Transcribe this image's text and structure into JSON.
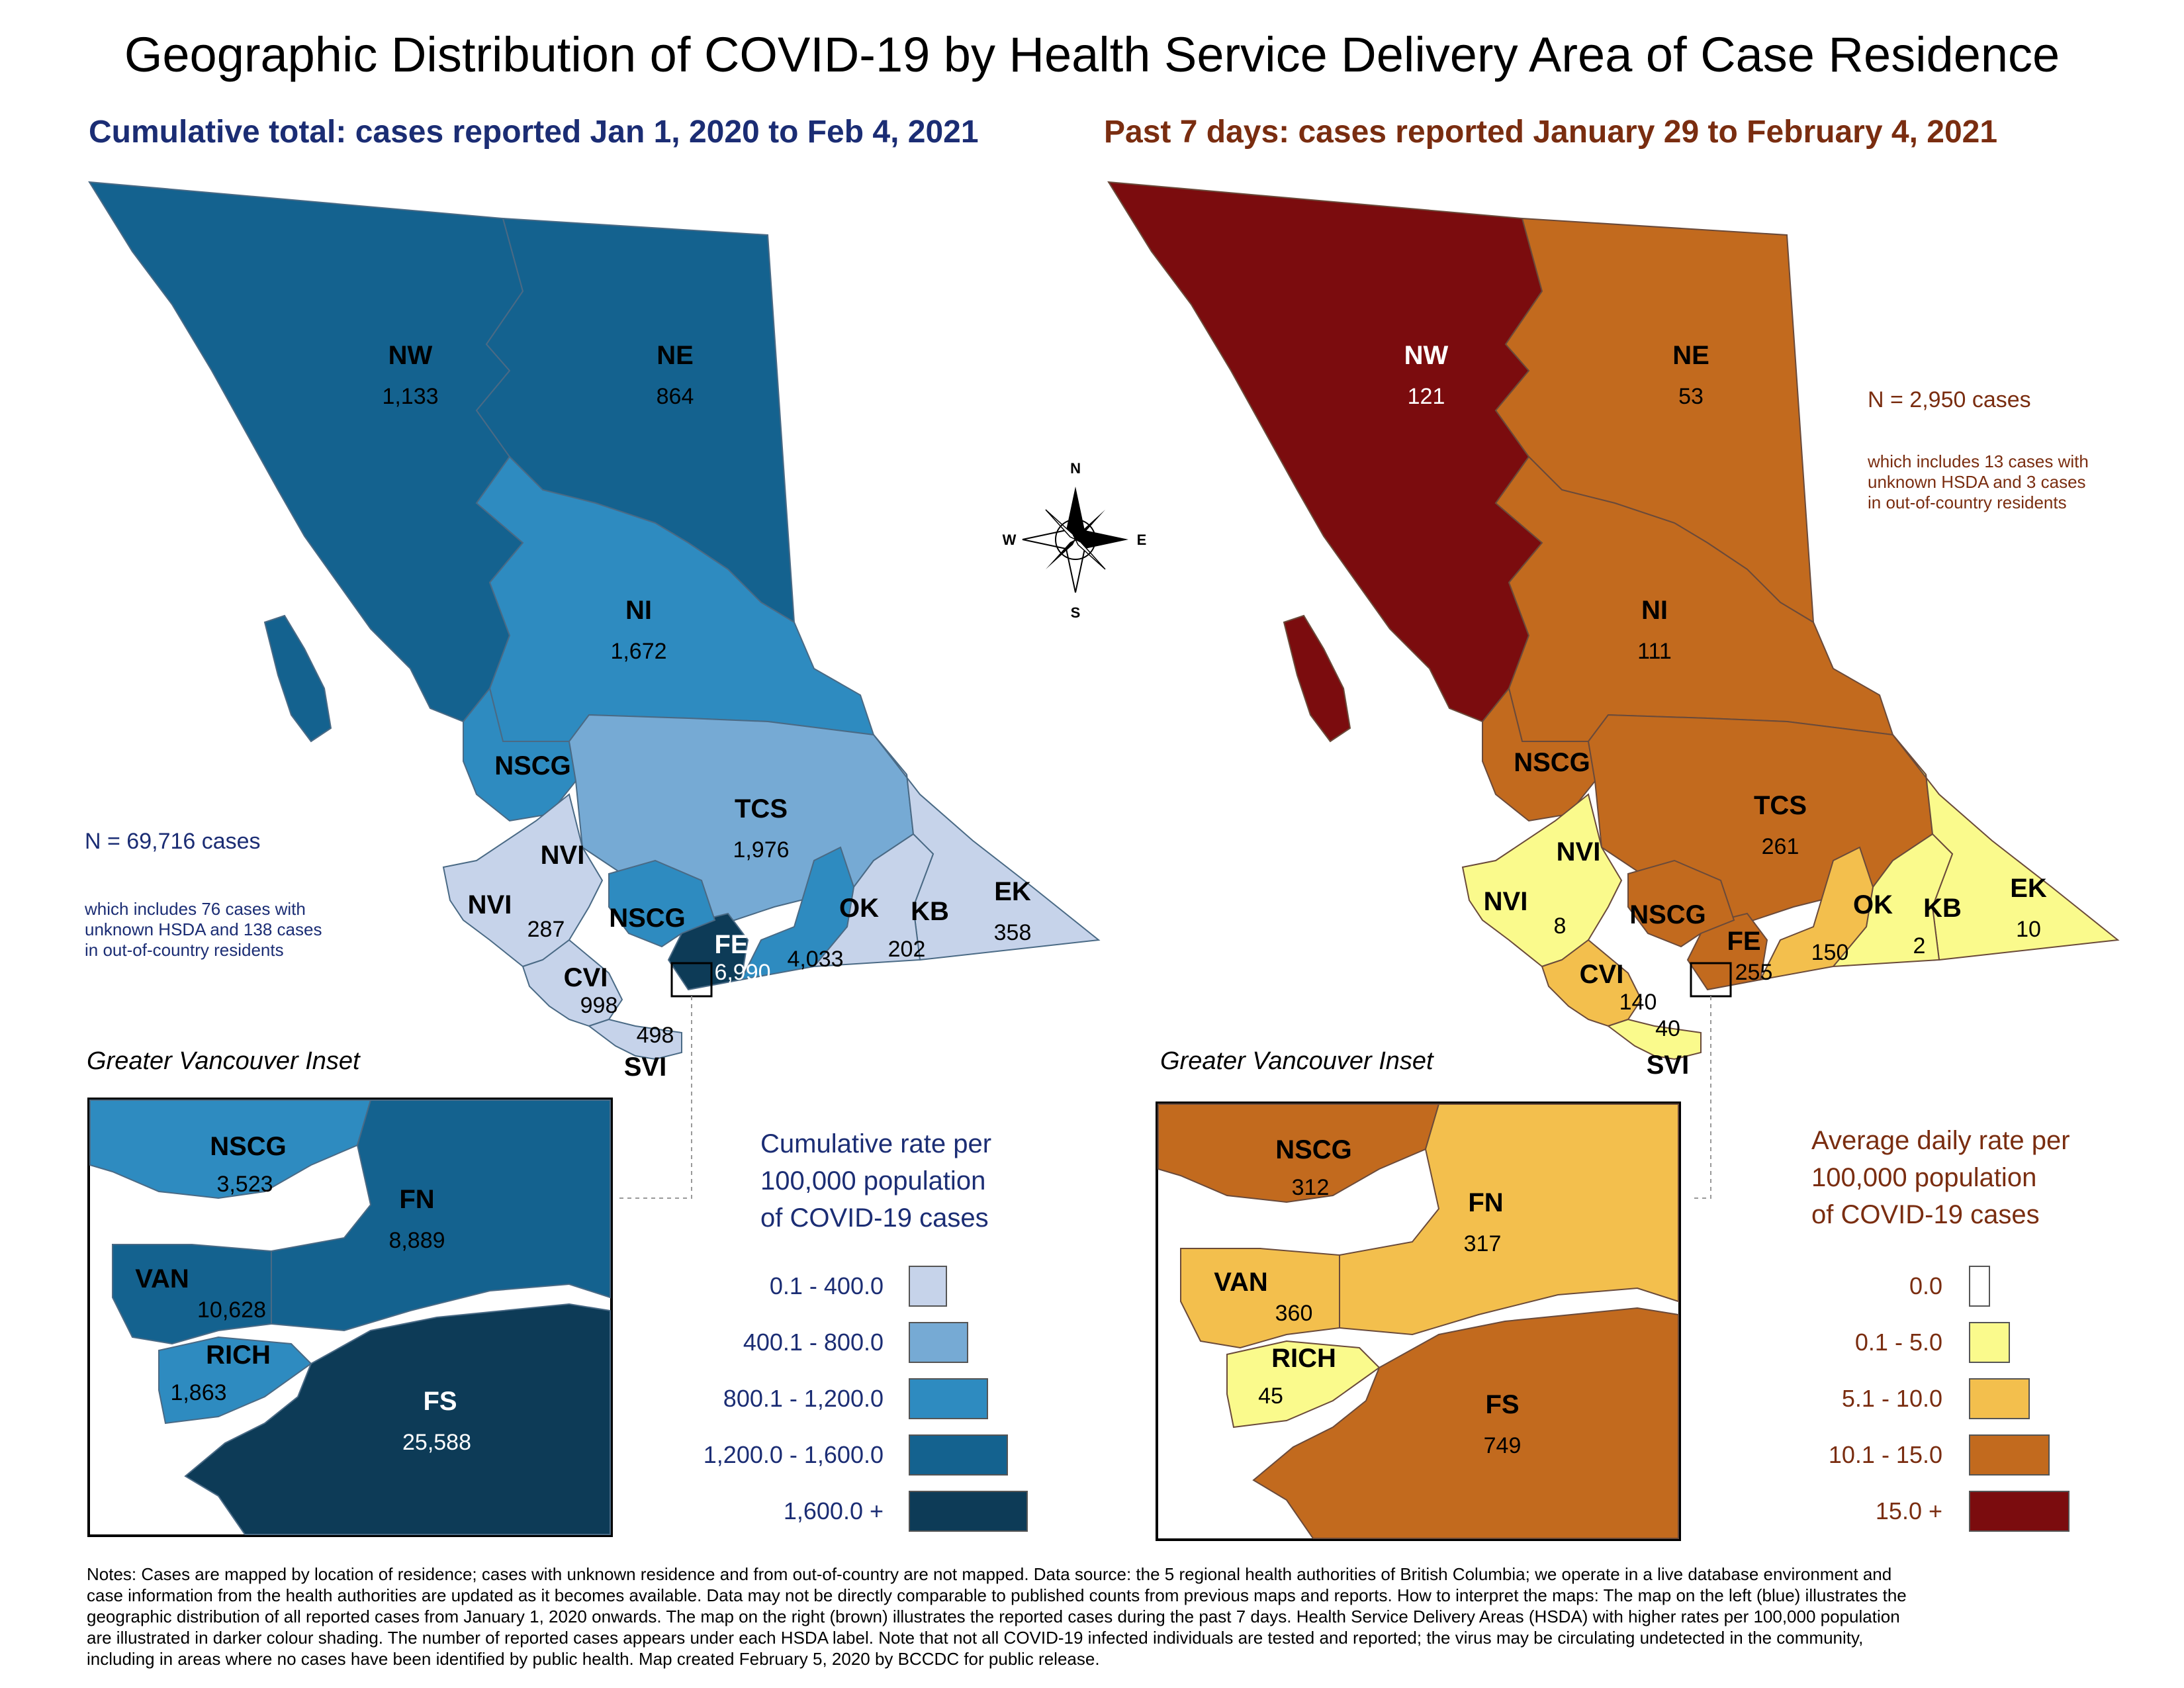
{
  "title": "Geographic Distribution of COVID-19 by Health Service Delivery Area of Case Residence",
  "left_panel": {
    "subtitle": "Cumulative total: cases reported Jan 1, 2020 to Feb 4, 2021",
    "n_cases": "N = 69,716 cases",
    "n_note_line1": "which includes 76 cases with",
    "n_note_line2": "unknown HSDA and 138 cases",
    "n_note_line3": "in out-of-country residents",
    "regions": {
      "NW": {
        "label": "NW",
        "value": "1,133",
        "color": "#14628f"
      },
      "NE": {
        "label": "NE",
        "value": "864",
        "color": "#14628f"
      },
      "NI": {
        "label": "NI",
        "value": "1,672",
        "color": "#2e8bc0"
      },
      "NSCG": {
        "label": "NSCG",
        "value": "",
        "color": "#2e8bc0"
      },
      "TCS": {
        "label": "TCS",
        "value": "1,976",
        "color": "#76aad4"
      },
      "NVI": {
        "label": "NVI",
        "value": "287",
        "color": "#c6d3ea"
      },
      "NSCG2": {
        "label": "NSCG",
        "value": "",
        "color": "#2e8bc0"
      },
      "FE": {
        "label": "FE",
        "value": "6,990",
        "color": "#0d3b57"
      },
      "OK": {
        "label": "OK",
        "value": "4,033",
        "color": "#2e8bc0"
      },
      "KB": {
        "label": "KB",
        "value": "202",
        "color": "#c6d3ea"
      },
      "EK": {
        "label": "EK",
        "value": "358",
        "color": "#c6d3ea"
      },
      "CVI": {
        "label": "CVI",
        "value": "998",
        "color": "#c6d3ea"
      },
      "SVI": {
        "label": "SVI",
        "value": "498",
        "color": "#c6d3ea"
      }
    },
    "inset": {
      "title": "Greater Vancouver Inset",
      "NSCG": {
        "label": "NSCG",
        "value": "3,523",
        "color": "#2e8bc0"
      },
      "FN": {
        "label": "FN",
        "value": "8,889",
        "color": "#14628f"
      },
      "VAN": {
        "label": "VAN",
        "value": "10,628",
        "color": "#14628f"
      },
      "RICH": {
        "label": "RICH",
        "value": "1,863",
        "color": "#2e8bc0"
      },
      "FS": {
        "label": "FS",
        "value": "25,588",
        "color": "#0d3b57"
      }
    },
    "legend": {
      "title_line1": "Cumulative rate per",
      "title_line2": "100,000 population",
      "title_line3": "of COVID-19 cases",
      "items": [
        {
          "label": "0.1 - 400.0",
          "color": "#c6d3ea"
        },
        {
          "label": "400.1 - 800.0",
          "color": "#76aad4"
        },
        {
          "label": "800.1 - 1,200.0",
          "color": "#2e8bc0"
        },
        {
          "label": "1,200.0 - 1,600.0",
          "color": "#14628f"
        },
        {
          "label": "1,600.0 +",
          "color": "#0d3b57"
        }
      ]
    }
  },
  "right_panel": {
    "subtitle": "Past 7 days: cases reported January 29 to February 4, 2021",
    "n_cases": "N = 2,950 cases",
    "n_note_line1": "which includes 13 cases with",
    "n_note_line2": "unknown HSDA and 3 cases",
    "n_note_line3": "in out-of-country residents",
    "regions": {
      "NW": {
        "label": "NW",
        "value": "121",
        "color": "#7b0c0e"
      },
      "NE": {
        "label": "NE",
        "value": "53",
        "color": "#c26a1e"
      },
      "NI": {
        "label": "NI",
        "value": "111",
        "color": "#c26a1e"
      },
      "NSCG": {
        "label": "NSCG",
        "value": "",
        "color": "#c26a1e"
      },
      "TCS": {
        "label": "TCS",
        "value": "261",
        "color": "#c26a1e"
      },
      "NVI": {
        "label": "NVI",
        "value": "8",
        "color": "#fafa8c"
      },
      "NSCG2": {
        "label": "NSCG",
        "value": "",
        "color": "#c26a1e"
      },
      "FE": {
        "label": "FE",
        "value": "255",
        "color": "#c26a1e"
      },
      "OK": {
        "label": "OK",
        "value": "150",
        "color": "#f3bf4d"
      },
      "KB": {
        "label": "KB",
        "value": "2",
        "color": "#fafa8c"
      },
      "EK": {
        "label": "EK",
        "value": "10",
        "color": "#fafa8c"
      },
      "CVI": {
        "label": "CVI",
        "value": "140",
        "color": "#f3bf4d"
      },
      "SVI": {
        "label": "SVI",
        "value": "40",
        "color": "#fafa8c"
      }
    },
    "inset": {
      "title": "Greater Vancouver Inset",
      "NSCG": {
        "label": "NSCG",
        "value": "312",
        "color": "#c26a1e"
      },
      "FN": {
        "label": "FN",
        "value": "317",
        "color": "#f3bf4d"
      },
      "VAN": {
        "label": "VAN",
        "value": "360",
        "color": "#f3bf4d"
      },
      "RICH": {
        "label": "RICH",
        "value": "45",
        "color": "#fafa8c"
      },
      "FS": {
        "label": "FS",
        "value": "749",
        "color": "#c26a1e"
      }
    },
    "legend": {
      "title_line1": "Average daily rate per",
      "title_line2": "100,000 population",
      "title_line3": "of COVID-19 cases",
      "items": [
        {
          "label": "0.0",
          "color": "#ffffff"
        },
        {
          "label": "0.1 - 5.0",
          "color": "#fafa8c"
        },
        {
          "label": "5.1 - 10.0",
          "color": "#f3bf4d"
        },
        {
          "label": "10.1 - 15.0",
          "color": "#c26a1e"
        },
        {
          "label": "15.0 +",
          "color": "#7b0c0e"
        }
      ]
    }
  },
  "compass": {
    "n": "N",
    "s": "S",
    "e": "E",
    "w": "W"
  },
  "notes": [
    "Notes: Cases are mapped by location of residence; cases with unknown residence and from out-of-country are not mapped. Data source: the 5 regional health authorities of British Columbia; we operate in a live database environment and",
    "case information from the health authorities are updated as it becomes available. Data may not be directly comparable to published counts from previous maps and reports. How to interpret the maps: The map on the left (blue) illustrates the",
    "geographic distribution of all reported cases from January 1, 2020 onwards. The map on the right (brown) illustrates the reported cases during the past 7 days. Health Service Delivery Areas (HSDA) with higher rates per 100,000 population",
    "are illustrated in darker colour shading. The number of reported cases appears under each HSDA label. Note that not all COVID-19 infected individuals are tested and reported; the virus may be circulating undetected in the community,",
    "including in areas where no cases have been identified by public health. Map created February 5, 2020 by BCCDC for public release."
  ]
}
